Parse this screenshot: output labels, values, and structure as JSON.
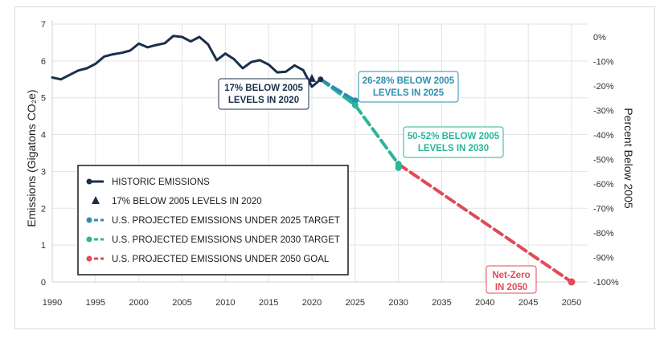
{
  "chart_data": {
    "type": "line",
    "title": "",
    "ylabel": "Emissions (Gigatons CO₂e)",
    "y2label": "Percent Below 2005",
    "xlim": [
      1990,
      2050
    ],
    "ylim": [
      0,
      7
    ],
    "x_ticks": [
      1990,
      1995,
      2000,
      2005,
      2010,
      2015,
      2020,
      2025,
      2030,
      2035,
      2040,
      2045,
      2050
    ],
    "y_ticks": [
      0,
      1,
      2,
      3,
      4,
      5,
      6,
      7
    ],
    "y2_ticks": [
      "0%",
      "-10%",
      "-20%",
      "-30%",
      "-40%",
      "-50%",
      "-60%",
      "-70%",
      "-80%",
      "-90%",
      "-100%"
    ],
    "y2_reference_value": 6.65,
    "grid": true,
    "legend_position": "bottom-left",
    "series": [
      {
        "name": "HISTORIC EMISSIONS",
        "color": "#1b2f4b",
        "style": "solid",
        "marker": "circle",
        "x": [
          1990,
          1991,
          1992,
          1993,
          1994,
          1995,
          1996,
          1997,
          1998,
          1999,
          2000,
          2001,
          2002,
          2003,
          2004,
          2005,
          2006,
          2007,
          2008,
          2009,
          2010,
          2011,
          2012,
          2013,
          2014,
          2015,
          2016,
          2017,
          2018,
          2019,
          2020,
          2021
        ],
        "y": [
          5.55,
          5.5,
          5.62,
          5.74,
          5.8,
          5.92,
          6.12,
          6.18,
          6.22,
          6.28,
          6.47,
          6.37,
          6.43,
          6.48,
          6.68,
          6.65,
          6.53,
          6.65,
          6.45,
          6.02,
          6.2,
          6.05,
          5.8,
          5.97,
          6.02,
          5.9,
          5.69,
          5.71,
          5.88,
          5.75,
          5.3,
          5.5
        ]
      },
      {
        "name": "17% BELOW 2005 LEVELS IN 2020",
        "color": "#1b2f4b",
        "style": "none",
        "marker": "triangle",
        "x": [
          2020
        ],
        "y": [
          5.52
        ]
      },
      {
        "name": "U.S. PROJECTED EMISSIONS UNDER 2025 TARGET",
        "color": "#2b8fb1",
        "style": "dashed",
        "marker": "circle",
        "x": [
          2021,
          2025
        ],
        "y": [
          5.5,
          4.92
        ]
      },
      {
        "name": "U.S. PROJECTED EMISSIONS UNDER 2030 TARGET",
        "color": "#2bb59a",
        "style": "dashed",
        "marker": "circle",
        "x": [
          2021,
          2025,
          2030
        ],
        "y": [
          5.5,
          4.8,
          3.2
        ]
      },
      {
        "name": "U.S. PROJECTED EMISSIONS UNDER 2050 GOAL",
        "color": "#e04b55",
        "style": "dashed",
        "marker": "circle",
        "x": [
          2030,
          2050
        ],
        "y": [
          3.2,
          0
        ]
      }
    ],
    "annotations": [
      {
        "id": "a2020",
        "lines": [
          "17% BELOW 2005",
          "LEVELS IN 2020"
        ],
        "color": "#1b2f4b",
        "x": 2020,
        "y": 5.52
      },
      {
        "id": "a2025",
        "lines": [
          "26-28% BELOW 2005",
          "LEVELS IN 2025"
        ],
        "color": "#2b8fb1",
        "x": 2025,
        "y": 4.92
      },
      {
        "id": "a2030",
        "lines": [
          "50-52% BELOW 2005",
          "LEVELS IN 2030"
        ],
        "color": "#2bb59a",
        "x": 2030,
        "y": 3.3
      },
      {
        "id": "a2050",
        "lines": [
          "Net-Zero",
          "IN 2050"
        ],
        "color": "#e04b55",
        "x": 2050,
        "y": 0
      }
    ]
  }
}
